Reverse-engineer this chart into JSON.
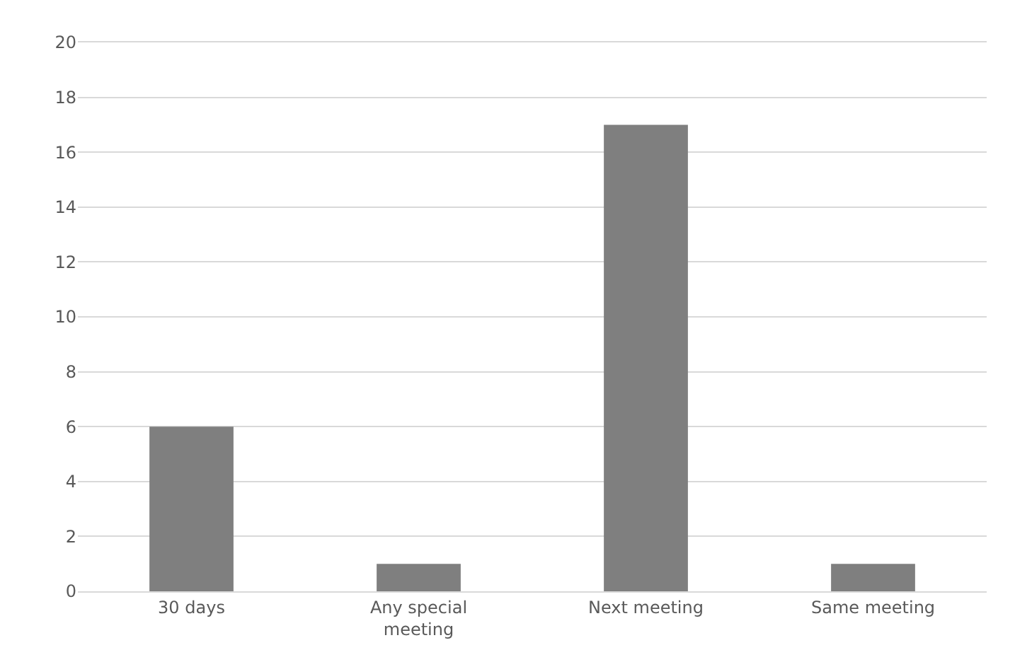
{
  "chart_data": {
    "type": "bar",
    "categories": [
      "30 days",
      "Any special meeting",
      "Next meeting",
      "Same meeting"
    ],
    "values": [
      6,
      1,
      17,
      1
    ],
    "color": "#7f7f7f",
    "ylim": [
      0,
      20
    ],
    "yticks": [
      0,
      2,
      4,
      6,
      8,
      10,
      12,
      14,
      16,
      18,
      20
    ],
    "grid": "y"
  }
}
